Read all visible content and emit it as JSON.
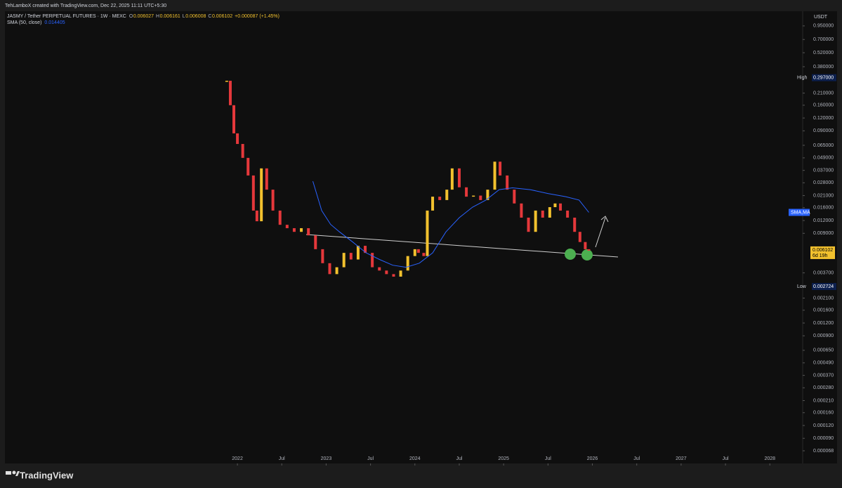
{
  "attribution": "TehLamboX created with TradingView.com, Dec 22, 2025 11:11 UTC+5:30",
  "footer_logo": "TradingView",
  "legend": {
    "symbol": "JASMY / Tether PERPETUAL FUTURES · 1W · MEXC",
    "ohlc": [
      {
        "label": "O",
        "value": "0.006027"
      },
      {
        "label": "H",
        "value": "0.006161"
      },
      {
        "label": "L",
        "value": "0.006008"
      },
      {
        "label": "C",
        "value": "0.006102"
      }
    ],
    "change": "+0.000087 (+1.45%)",
    "indicator": "SMA (50, close)",
    "indicator_value": "0.014405"
  },
  "axis_currency": "USDT",
  "price_labels": {
    "high_label": "High",
    "high_value": "0.297000",
    "low_label": "Low",
    "low_value": "0.002724",
    "last_value": "0.006102",
    "countdown": "6d 19h",
    "sma_tag": "SMA,MA"
  },
  "chart_data": {
    "type": "candlestick",
    "log_scale": true,
    "up_color": "#f2c12e",
    "down_color": "#e5383b",
    "x": [
      2021.88,
      2021.92,
      2021.96,
      2022.0,
      2022.06,
      2022.12,
      2022.18,
      2022.22,
      2022.27,
      2022.33,
      2022.4,
      2022.48,
      2022.56,
      2022.64,
      2022.72,
      2022.8,
      2022.88,
      2022.96,
      2023.04,
      2023.12,
      2023.2,
      2023.28,
      2023.36,
      2023.44,
      2023.52,
      2023.6,
      2023.68,
      2023.76,
      2023.84,
      2023.92,
      2024.0,
      2024.04,
      2024.1,
      2024.14,
      2024.2,
      2024.28,
      2024.36,
      2024.42,
      2024.5,
      2024.58,
      2024.66,
      2024.74,
      2024.82,
      2024.9,
      2024.96,
      2025.04,
      2025.12,
      2025.2,
      2025.28,
      2025.36,
      2025.44,
      2025.52,
      2025.58,
      2025.64,
      2025.72,
      2025.8,
      2025.86,
      2025.92,
      2025.96
    ],
    "series": [
      {
        "name": "JASMYUSDT",
        "values": [
          0.277,
          0.16,
          0.085,
          0.067,
          0.049,
          0.033,
          0.015,
          0.0118,
          0.0387,
          0.024,
          0.015,
          0.0109,
          0.0101,
          0.0093,
          0.0101,
          0.0086,
          0.0063,
          0.0046,
          0.0036,
          0.0042,
          0.0058,
          0.005,
          0.0068,
          0.0058,
          0.0042,
          0.0039,
          0.0036,
          0.0034,
          0.0039,
          0.0054,
          0.0063,
          0.0058,
          0.0054,
          0.015,
          0.0205,
          0.019,
          0.024,
          0.0387,
          0.0253,
          0.0205,
          0.021,
          0.019,
          0.024,
          0.045,
          0.033,
          0.024,
          0.0176,
          0.0128,
          0.0093,
          0.015,
          0.0128,
          0.0162,
          0.0176,
          0.015,
          0.0128,
          0.0093,
          0.0074,
          0.0063,
          0.0061
        ]
      },
      {
        "name": "SMA (50, close)",
        "color": "#2962ff",
        "x": [
          2022.85,
          2022.95,
          2023.05,
          2023.15,
          2023.3,
          2023.45,
          2023.6,
          2023.75,
          2023.9,
          2024.05,
          2024.2,
          2024.35,
          2024.5,
          2024.65,
          2024.8,
          2024.95,
          2025.1,
          2025.3,
          2025.5,
          2025.7,
          2025.85,
          2025.96
        ],
        "values": [
          0.029,
          0.015,
          0.011,
          0.0093,
          0.0074,
          0.0058,
          0.005,
          0.0044,
          0.0042,
          0.0046,
          0.0058,
          0.0093,
          0.0128,
          0.0162,
          0.019,
          0.024,
          0.025,
          0.024,
          0.022,
          0.0205,
          0.019,
          0.014405
        ]
      }
    ],
    "xlim": [
      2019.38,
      2028.37
    ],
    "xticks": [
      2022,
      {
        "value": 2022.5,
        "label": "Jul"
      },
      2023,
      {
        "value": 2023.5,
        "label": "Jul"
      },
      2024,
      {
        "value": 2024.5,
        "label": "Jul"
      },
      2025,
      {
        "value": 2025.5,
        "label": "Jul"
      },
      2026,
      {
        "value": 2026.5,
        "label": "Jul"
      },
      2027,
      {
        "value": 2027.5,
        "label": "Jul"
      },
      2028
    ],
    "ylim": [
      5.12e-05,
      1.28
    ],
    "yticks": [
      {
        "value": 0.95,
        "label": "0.950000"
      },
      {
        "value": 0.7,
        "label": "0.700000"
      },
      {
        "value": 0.52,
        "label": "0.520000"
      },
      {
        "value": 0.38,
        "label": "0.380000"
      },
      {
        "value": 0.21,
        "label": "0.210000"
      },
      {
        "value": 0.16,
        "label": "0.160000"
      },
      {
        "value": 0.12,
        "label": "0.120000"
      },
      {
        "value": 0.09,
        "label": "0.090000"
      },
      {
        "value": 0.065,
        "label": "0.065000"
      },
      {
        "value": 0.049,
        "label": "0.049000"
      },
      {
        "value": 0.037,
        "label": "0.037000"
      },
      {
        "value": 0.028,
        "label": "0.028000"
      },
      {
        "value": 0.021,
        "label": "0.021000"
      },
      {
        "value": 0.016,
        "label": "0.016000"
      },
      {
        "value": 0.012,
        "label": "0.012000"
      },
      {
        "value": 0.009,
        "label": "0.009000"
      },
      {
        "value": 0.0037,
        "label": "0.003700"
      },
      {
        "value": 0.0021,
        "label": "0.002100"
      },
      {
        "value": 0.0016,
        "label": "0.001600"
      },
      {
        "value": 0.0012,
        "label": "0.001200"
      },
      {
        "value": 0.0009,
        "label": "0.000900"
      },
      {
        "value": 0.00065,
        "label": "0.000650"
      },
      {
        "value": 0.00049,
        "label": "0.000490"
      },
      {
        "value": 0.00037,
        "label": "0.000370"
      },
      {
        "value": 0.00028,
        "label": "0.000280"
      },
      {
        "value": 0.00021,
        "label": "0.000210"
      },
      {
        "value": 0.00016,
        "label": "0.000160"
      },
      {
        "value": 0.00012,
        "label": "0.000120"
      },
      {
        "value": 9e-05,
        "label": "0.000090"
      },
      {
        "value": 6.8e-05,
        "label": "0.000068"
      }
    ]
  }
}
